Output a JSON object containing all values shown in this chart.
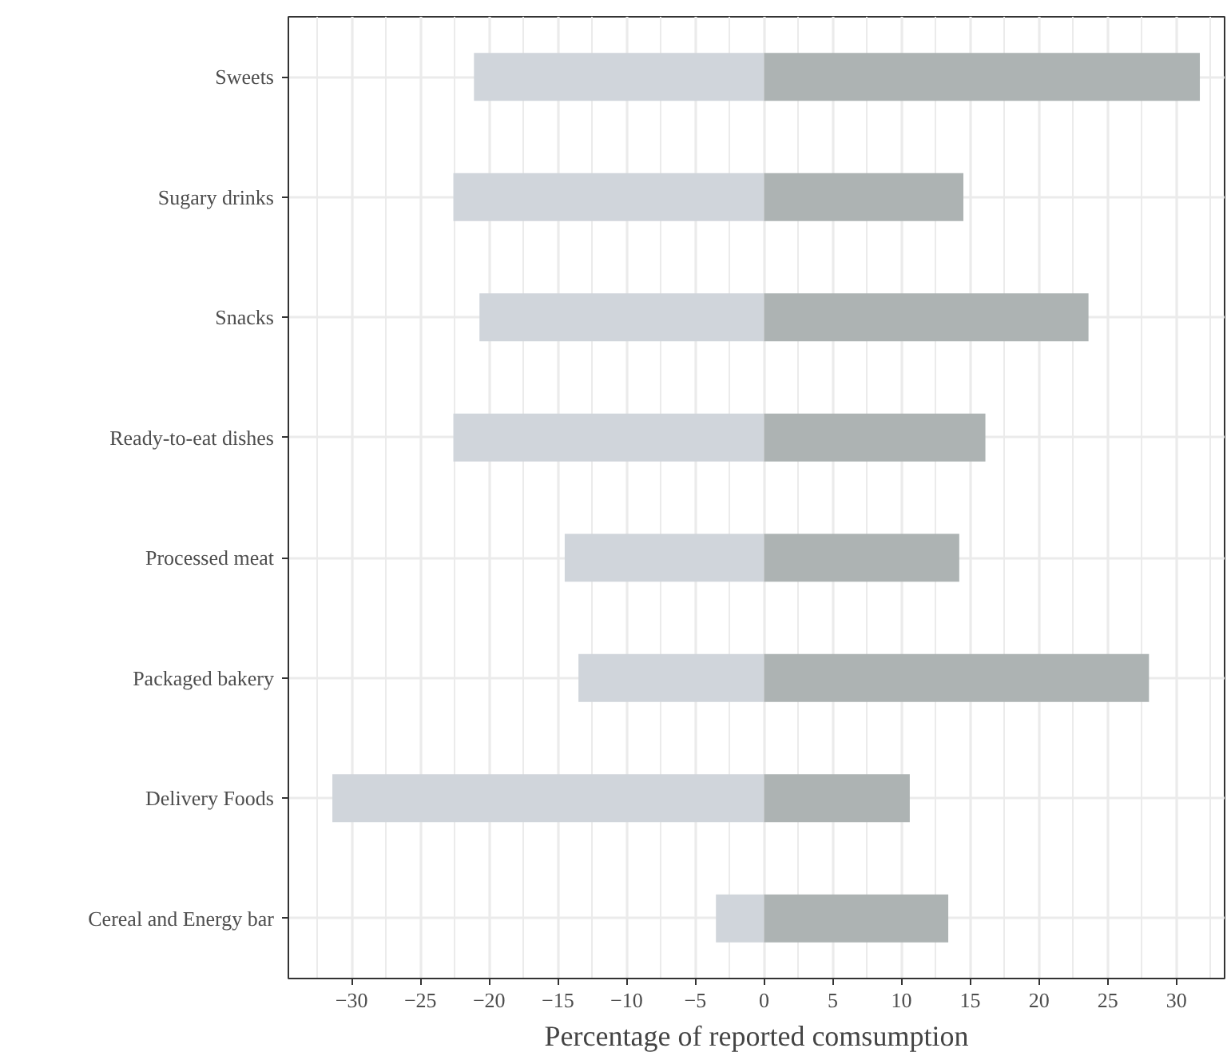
{
  "chart_data": {
    "type": "bar",
    "orientation": "horizontal",
    "stacked": true,
    "categories": [
      "Sweets",
      "Sugary drinks",
      "Snacks",
      "Ready-to-eat dishes",
      "Processed meat",
      "Packaged bakery",
      "Delivery Foods",
      "Cereal and Energy bar"
    ],
    "series": [
      {
        "color": "#d0d5db",
        "values": [
          -21.1,
          -22.6,
          -20.7,
          -22.6,
          -14.5,
          -13.5,
          -31.4,
          -3.5
        ]
      },
      {
        "color": "#adb3b3",
        "values": [
          31.7,
          14.5,
          23.6,
          16.1,
          14.2,
          28.0,
          10.6,
          13.4
        ]
      }
    ],
    "xlabel": "Percentage of reported comsumption",
    "xlim": [
      -34.6,
      33.5
    ],
    "xticks": [
      -30,
      -25,
      -20,
      -15,
      -10,
      -5,
      0,
      5,
      10,
      15,
      20,
      25,
      30
    ],
    "grid": true
  }
}
